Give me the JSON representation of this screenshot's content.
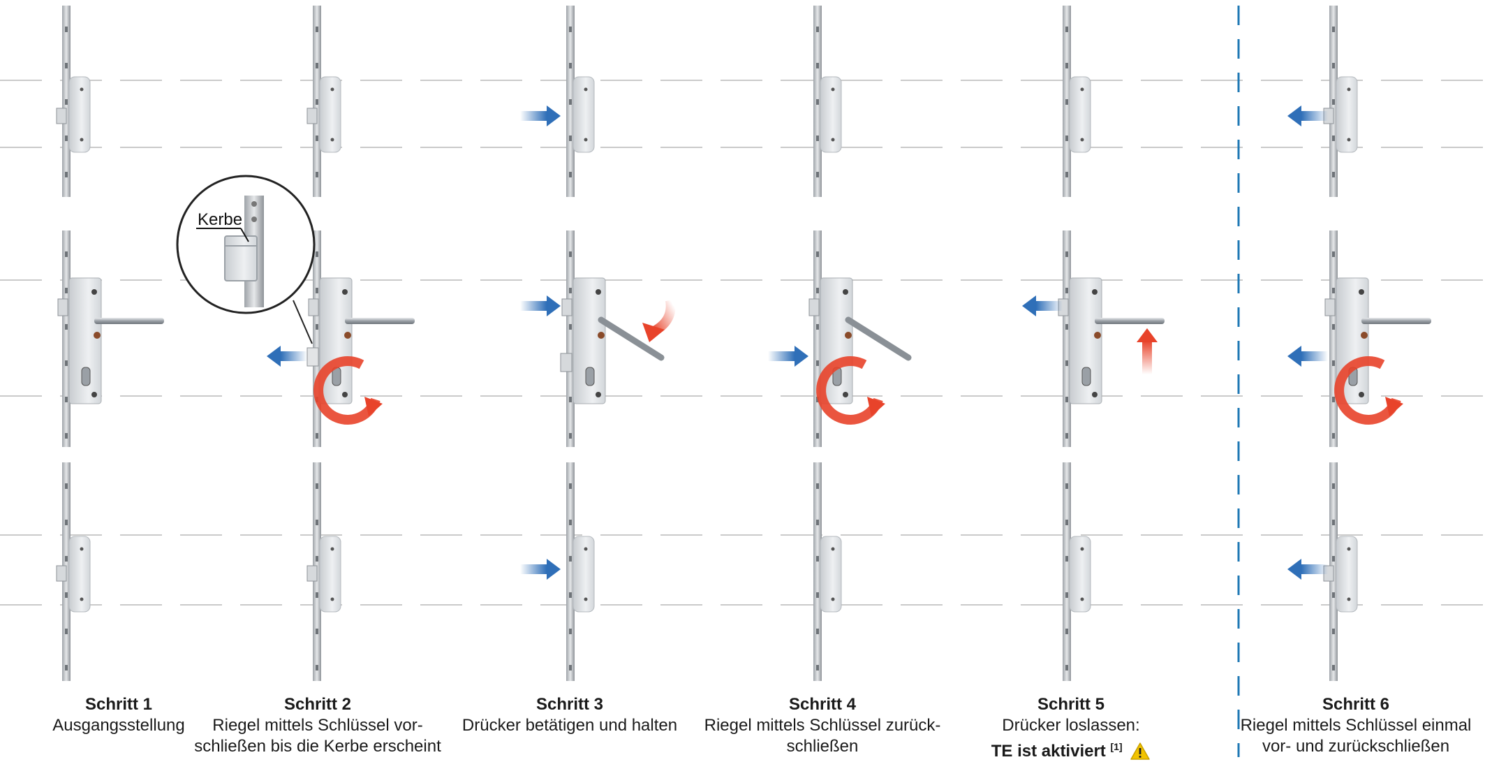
{
  "steps": [
    {
      "title": "Schritt 1",
      "lines": [
        "Ausgangsstellung"
      ]
    },
    {
      "title": "Schritt 2",
      "lines": [
        "Riegel mittels Schlüssel vor-",
        "schließen bis die Kerbe erscheint"
      ]
    },
    {
      "title": "Schritt 3",
      "lines": [
        "Drücker betätigen und halten"
      ]
    },
    {
      "title": "Schritt 4",
      "lines": [
        "Riegel mittels Schlüssel zurück-",
        "schließen"
      ]
    },
    {
      "title": "Schritt 5",
      "lines": [
        "Drücker loslassen:"
      ],
      "emphasis": "TE ist aktiviert",
      "footnote": "[1]"
    },
    {
      "title": "Schritt 6",
      "lines": [
        "Riegel mittels Schlüssel einmal",
        "vor- und zurückschließen"
      ]
    }
  ],
  "callout": {
    "label": "Kerbe"
  },
  "icons": {
    "warning": "warning-triangle-icon",
    "push_arrow": "arrow-icon",
    "rotation": "rotation-arrow-icon"
  },
  "colors": {
    "blue_arrow": "#2f6fb8",
    "red_arrow": "#e8432a",
    "separator": "#1f78b4",
    "guide": "#b8b8b8",
    "warning": "#f2c300"
  }
}
